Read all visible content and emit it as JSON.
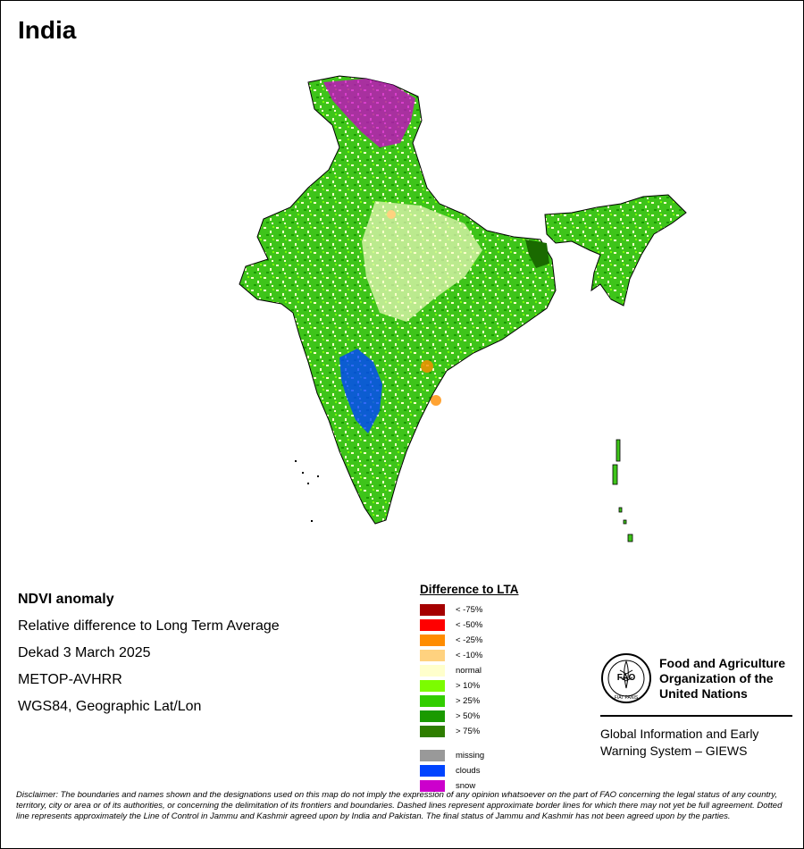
{
  "title": "India",
  "info": {
    "heading": "NDVI anomaly",
    "line1": "Relative difference to Long Term Average",
    "line2": "Dekad 3 March 2025",
    "line3": "METOP-AVHRR",
    "line4": "WGS84, Geographic Lat/Lon"
  },
  "legend": {
    "title": "Difference to LTA",
    "items": [
      {
        "label": "< -75%",
        "color": "#a50000"
      },
      {
        "label": "< -50%",
        "color": "#ff0000"
      },
      {
        "label": "< -25%",
        "color": "#ff8c00"
      },
      {
        "label": "< -10%",
        "color": "#ffd27f"
      },
      {
        "label": "normal",
        "color": "#ffffcc"
      },
      {
        "label": "> 10%",
        "color": "#7cfc00"
      },
      {
        "label": "> 25%",
        "color": "#32cd00"
      },
      {
        "label": "> 50%",
        "color": "#1a9a00"
      },
      {
        "label": "> 75%",
        "color": "#2e7d00"
      }
    ],
    "extra": [
      {
        "label": "missing",
        "color": "#999999"
      },
      {
        "label": "clouds",
        "color": "#0044ff"
      },
      {
        "label": "snow",
        "color": "#cc00cc"
      }
    ]
  },
  "fao": {
    "line1": "Food and Agriculture",
    "line2": "Organization of the",
    "line3": "United Nations",
    "logo_text": "FAO",
    "logo_motto": "FIAT PANIS"
  },
  "giews": {
    "line1": "Global Information and Early",
    "line2": "Warning System – GIEWS"
  },
  "disclaimer": "Disclaimer: The boundaries and names shown and the designations used on this map do not imply the expression of any opinion whatsoever on the part of FAO concerning the legal status of any country, territory, city or area or of its authorities, or concerning the delimitation of its frontiers and boundaries. Dashed lines represent approximate border lines for which there may not yet be full agreement. Dotted line represents approximately the Line of Control in Jammu and Kashmir agreed upon by India and Pakistan. The final status of Jammu and Kashmir has not been agreed upon by the parties."
}
